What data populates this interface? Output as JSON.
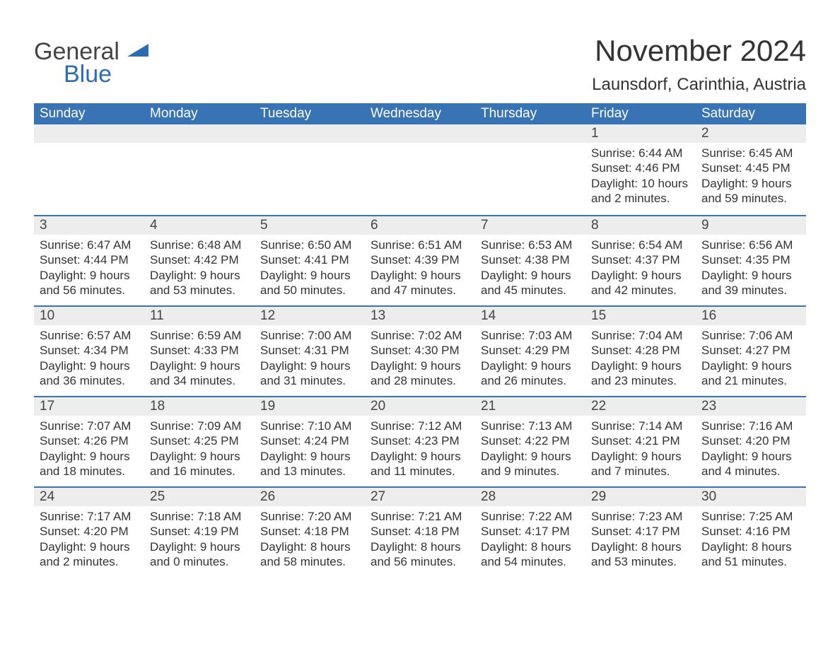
{
  "logo": {
    "word1": "General",
    "word2": "Blue",
    "shape_color": "#2d6cb0",
    "text_color_dark": "#444444",
    "text_color_blue": "#2d6cb0"
  },
  "title": "November 2024",
  "location": "Launsdorf, Carinthia, Austria",
  "colors": {
    "header_bg": "#3874b3",
    "header_fg": "#ffffff",
    "daynum_bg": "#ededed",
    "daynum_border": "#3874b3",
    "body_bg": "#ffffff",
    "text": "#333333"
  },
  "day_headers": [
    "Sunday",
    "Monday",
    "Tuesday",
    "Wednesday",
    "Thursday",
    "Friday",
    "Saturday"
  ],
  "weeks": [
    [
      null,
      null,
      null,
      null,
      null,
      {
        "n": "1",
        "sunrise": "Sunrise: 6:44 AM",
        "sunset": "Sunset: 4:46 PM",
        "day1": "Daylight: 10 hours",
        "day2": "and 2 minutes."
      },
      {
        "n": "2",
        "sunrise": "Sunrise: 6:45 AM",
        "sunset": "Sunset: 4:45 PM",
        "day1": "Daylight: 9 hours",
        "day2": "and 59 minutes."
      }
    ],
    [
      {
        "n": "3",
        "sunrise": "Sunrise: 6:47 AM",
        "sunset": "Sunset: 4:44 PM",
        "day1": "Daylight: 9 hours",
        "day2": "and 56 minutes."
      },
      {
        "n": "4",
        "sunrise": "Sunrise: 6:48 AM",
        "sunset": "Sunset: 4:42 PM",
        "day1": "Daylight: 9 hours",
        "day2": "and 53 minutes."
      },
      {
        "n": "5",
        "sunrise": "Sunrise: 6:50 AM",
        "sunset": "Sunset: 4:41 PM",
        "day1": "Daylight: 9 hours",
        "day2": "and 50 minutes."
      },
      {
        "n": "6",
        "sunrise": "Sunrise: 6:51 AM",
        "sunset": "Sunset: 4:39 PM",
        "day1": "Daylight: 9 hours",
        "day2": "and 47 minutes."
      },
      {
        "n": "7",
        "sunrise": "Sunrise: 6:53 AM",
        "sunset": "Sunset: 4:38 PM",
        "day1": "Daylight: 9 hours",
        "day2": "and 45 minutes."
      },
      {
        "n": "8",
        "sunrise": "Sunrise: 6:54 AM",
        "sunset": "Sunset: 4:37 PM",
        "day1": "Daylight: 9 hours",
        "day2": "and 42 minutes."
      },
      {
        "n": "9",
        "sunrise": "Sunrise: 6:56 AM",
        "sunset": "Sunset: 4:35 PM",
        "day1": "Daylight: 9 hours",
        "day2": "and 39 minutes."
      }
    ],
    [
      {
        "n": "10",
        "sunrise": "Sunrise: 6:57 AM",
        "sunset": "Sunset: 4:34 PM",
        "day1": "Daylight: 9 hours",
        "day2": "and 36 minutes."
      },
      {
        "n": "11",
        "sunrise": "Sunrise: 6:59 AM",
        "sunset": "Sunset: 4:33 PM",
        "day1": "Daylight: 9 hours",
        "day2": "and 34 minutes."
      },
      {
        "n": "12",
        "sunrise": "Sunrise: 7:00 AM",
        "sunset": "Sunset: 4:31 PM",
        "day1": "Daylight: 9 hours",
        "day2": "and 31 minutes."
      },
      {
        "n": "13",
        "sunrise": "Sunrise: 7:02 AM",
        "sunset": "Sunset: 4:30 PM",
        "day1": "Daylight: 9 hours",
        "day2": "and 28 minutes."
      },
      {
        "n": "14",
        "sunrise": "Sunrise: 7:03 AM",
        "sunset": "Sunset: 4:29 PM",
        "day1": "Daylight: 9 hours",
        "day2": "and 26 minutes."
      },
      {
        "n": "15",
        "sunrise": "Sunrise: 7:04 AM",
        "sunset": "Sunset: 4:28 PM",
        "day1": "Daylight: 9 hours",
        "day2": "and 23 minutes."
      },
      {
        "n": "16",
        "sunrise": "Sunrise: 7:06 AM",
        "sunset": "Sunset: 4:27 PM",
        "day1": "Daylight: 9 hours",
        "day2": "and 21 minutes."
      }
    ],
    [
      {
        "n": "17",
        "sunrise": "Sunrise: 7:07 AM",
        "sunset": "Sunset: 4:26 PM",
        "day1": "Daylight: 9 hours",
        "day2": "and 18 minutes."
      },
      {
        "n": "18",
        "sunrise": "Sunrise: 7:09 AM",
        "sunset": "Sunset: 4:25 PM",
        "day1": "Daylight: 9 hours",
        "day2": "and 16 minutes."
      },
      {
        "n": "19",
        "sunrise": "Sunrise: 7:10 AM",
        "sunset": "Sunset: 4:24 PM",
        "day1": "Daylight: 9 hours",
        "day2": "and 13 minutes."
      },
      {
        "n": "20",
        "sunrise": "Sunrise: 7:12 AM",
        "sunset": "Sunset: 4:23 PM",
        "day1": "Daylight: 9 hours",
        "day2": "and 11 minutes."
      },
      {
        "n": "21",
        "sunrise": "Sunrise: 7:13 AM",
        "sunset": "Sunset: 4:22 PM",
        "day1": "Daylight: 9 hours",
        "day2": "and 9 minutes."
      },
      {
        "n": "22",
        "sunrise": "Sunrise: 7:14 AM",
        "sunset": "Sunset: 4:21 PM",
        "day1": "Daylight: 9 hours",
        "day2": "and 7 minutes."
      },
      {
        "n": "23",
        "sunrise": "Sunrise: 7:16 AM",
        "sunset": "Sunset: 4:20 PM",
        "day1": "Daylight: 9 hours",
        "day2": "and 4 minutes."
      }
    ],
    [
      {
        "n": "24",
        "sunrise": "Sunrise: 7:17 AM",
        "sunset": "Sunset: 4:20 PM",
        "day1": "Daylight: 9 hours",
        "day2": "and 2 minutes."
      },
      {
        "n": "25",
        "sunrise": "Sunrise: 7:18 AM",
        "sunset": "Sunset: 4:19 PM",
        "day1": "Daylight: 9 hours",
        "day2": "and 0 minutes."
      },
      {
        "n": "26",
        "sunrise": "Sunrise: 7:20 AM",
        "sunset": "Sunset: 4:18 PM",
        "day1": "Daylight: 8 hours",
        "day2": "and 58 minutes."
      },
      {
        "n": "27",
        "sunrise": "Sunrise: 7:21 AM",
        "sunset": "Sunset: 4:18 PM",
        "day1": "Daylight: 8 hours",
        "day2": "and 56 minutes."
      },
      {
        "n": "28",
        "sunrise": "Sunrise: 7:22 AM",
        "sunset": "Sunset: 4:17 PM",
        "day1": "Daylight: 8 hours",
        "day2": "and 54 minutes."
      },
      {
        "n": "29",
        "sunrise": "Sunrise: 7:23 AM",
        "sunset": "Sunset: 4:17 PM",
        "day1": "Daylight: 8 hours",
        "day2": "and 53 minutes."
      },
      {
        "n": "30",
        "sunrise": "Sunrise: 7:25 AM",
        "sunset": "Sunset: 4:16 PM",
        "day1": "Daylight: 8 hours",
        "day2": "and 51 minutes."
      }
    ]
  ]
}
